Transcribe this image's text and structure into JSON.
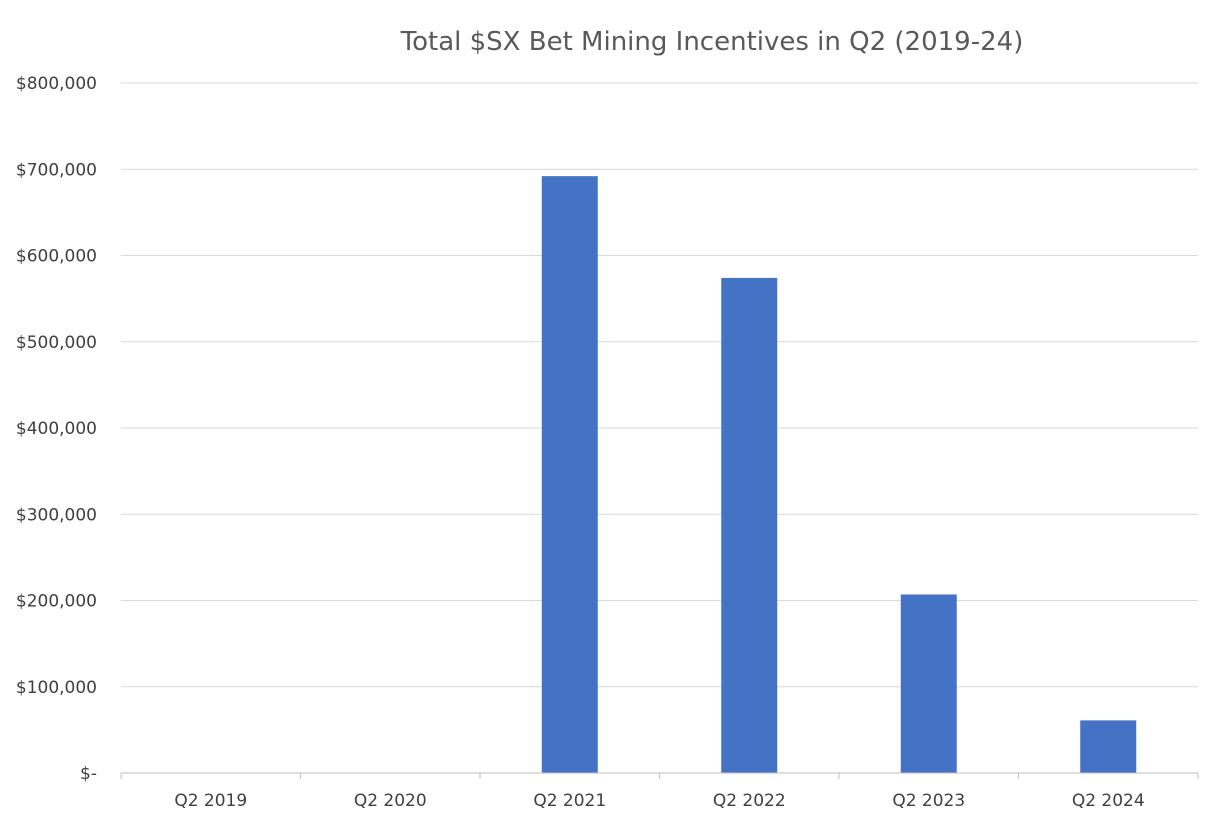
{
  "chart_data": {
    "type": "bar",
    "title": "Total $SX Bet Mining Incentives in Q2 (2019-24)",
    "categories": [
      "Q2 2019",
      "Q2 2020",
      "Q2 2021",
      "Q2 2022",
      "Q2 2023",
      "Q2 2024"
    ],
    "series": [
      {
        "name": "Total $SX Bet Mining Incentives",
        "values": [
          0,
          0,
          692000,
          574000,
          207000,
          61000
        ]
      }
    ],
    "xlabel": "",
    "ylabel": "",
    "ylim": [
      0,
      800000
    ],
    "y_ticks": [
      0,
      100000,
      200000,
      300000,
      400000,
      500000,
      600000,
      700000,
      800000
    ],
    "y_tick_labels": [
      "$-",
      "$100,000",
      "$200,000",
      "$300,000",
      "$400,000",
      "$500,000",
      "$600,000",
      "$700,000",
      "$800,000"
    ],
    "grid": true,
    "legend": "none",
    "bar_color": "#4472c4"
  }
}
